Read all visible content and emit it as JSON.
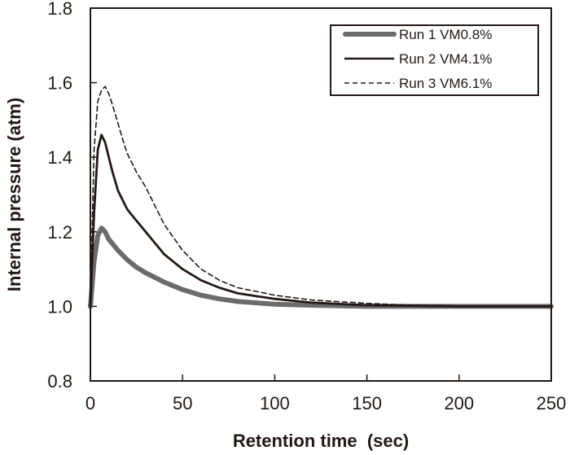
{
  "chart_data": {
    "type": "line",
    "title": "",
    "xlabel": "Retention time  (sec)",
    "ylabel": "Internal pressure (atm)",
    "xlim": [
      0,
      250
    ],
    "ylim": [
      0.8,
      1.8
    ],
    "xticks": [
      0,
      50,
      100,
      150,
      200,
      250
    ],
    "xtick_labels": [
      "0",
      "50",
      "100",
      "150",
      "200",
      "250"
    ],
    "yticks": [
      0.8,
      1.0,
      1.2,
      1.4,
      1.6,
      1.8
    ],
    "ytick_labels": [
      "0.8",
      "1.0",
      "1.2",
      "1.4",
      "1.6",
      "1.8"
    ],
    "grid": false,
    "legend_position": "top-right",
    "series": [
      {
        "name": "Run 1 VM0.8%",
        "style": "thick-gray",
        "color": "#6b6b6b",
        "x": [
          0,
          2,
          4,
          6,
          8,
          10,
          15,
          20,
          25,
          30,
          40,
          50,
          60,
          70,
          80,
          100,
          120,
          150,
          200,
          250
        ],
        "y": [
          1.0,
          1.12,
          1.19,
          1.21,
          1.2,
          1.18,
          1.15,
          1.125,
          1.105,
          1.09,
          1.065,
          1.045,
          1.03,
          1.02,
          1.013,
          1.006,
          1.003,
          1.0,
          1.0,
          1.0
        ]
      },
      {
        "name": "Run 2 VM4.1%",
        "style": "solid-black",
        "color": "#231815",
        "x": [
          0,
          2,
          4,
          6,
          8,
          10,
          12,
          15,
          18,
          20,
          25,
          30,
          35,
          40,
          50,
          60,
          70,
          80,
          100,
          120,
          150,
          200,
          250
        ],
        "y": [
          1.0,
          1.25,
          1.42,
          1.46,
          1.44,
          1.4,
          1.36,
          1.31,
          1.28,
          1.26,
          1.23,
          1.2,
          1.17,
          1.14,
          1.1,
          1.07,
          1.05,
          1.035,
          1.02,
          1.01,
          1.003,
          1.0,
          1.0
        ]
      },
      {
        "name": "Run 3 VM6.1%",
        "style": "dashed-black",
        "color": "#231815",
        "x": [
          0,
          2,
          4,
          6,
          8,
          10,
          12,
          15,
          18,
          20,
          25,
          30,
          35,
          40,
          50,
          60,
          70,
          80,
          100,
          120,
          150,
          175,
          195
        ],
        "y": [
          1.0,
          1.42,
          1.55,
          1.58,
          1.59,
          1.57,
          1.54,
          1.49,
          1.44,
          1.41,
          1.36,
          1.32,
          1.27,
          1.22,
          1.15,
          1.1,
          1.07,
          1.05,
          1.03,
          1.017,
          1.008,
          1.003,
          1.002
        ]
      }
    ]
  }
}
